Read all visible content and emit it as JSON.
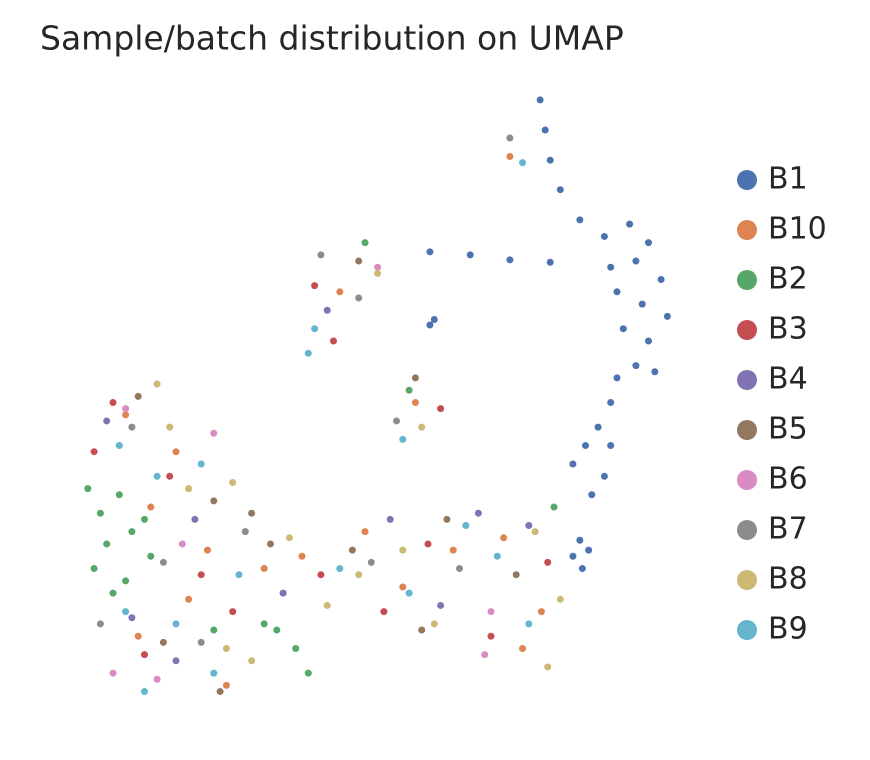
{
  "chart_data": {
    "type": "scatter",
    "title": "Sample/batch distribution on UMAP",
    "xlim": [
      0,
      10
    ],
    "ylim": [
      0,
      10
    ],
    "series": [
      {
        "name": "B1",
        "color": "#4c72b0",
        "x": [
          7.78,
          7.86,
          7.94,
          8.1,
          8.41,
          6.03,
          6.67,
          7.3,
          7.94,
          8.8,
          9.2,
          9.5,
          8.9,
          9.3,
          9.7,
          9.0,
          9.4,
          9.8,
          9.1,
          9.5,
          9.3,
          9.0,
          9.6,
          8.9,
          8.7,
          8.5,
          8.3,
          8.9,
          8.8,
          8.6,
          8.41,
          8.55,
          8.3,
          8.45,
          6.03,
          6.1
        ],
        "values": [
          9.92,
          9.43,
          8.94,
          8.46,
          7.97,
          7.45,
          7.4,
          7.32,
          7.28,
          7.7,
          7.9,
          7.6,
          7.2,
          7.3,
          7.0,
          6.8,
          6.6,
          6.4,
          6.2,
          6.0,
          5.6,
          5.4,
          5.5,
          5.0,
          4.6,
          4.3,
          4.0,
          4.3,
          3.8,
          3.5,
          2.76,
          2.6,
          2.5,
          2.3,
          6.26,
          6.35
        ]
      },
      {
        "name": "B10",
        "color": "#dd8452",
        "x": [
          1.2,
          2.0,
          1.6,
          2.5,
          1.4,
          2.8,
          2.2,
          4.0,
          5.0,
          5.6,
          7.2,
          7.8,
          7.5,
          4.6,
          5.8,
          7.3,
          3.4,
          6.4
        ],
        "values": [
          4.8,
          4.2,
          3.3,
          2.6,
          1.2,
          0.4,
          1.8,
          2.5,
          2.9,
          2.0,
          2.8,
          1.6,
          1.0,
          6.8,
          5.0,
          9.0,
          2.3,
          2.6
        ]
      },
      {
        "name": "B2",
        "color": "#55a868",
        "x": [
          0.6,
          0.8,
          1.1,
          0.9,
          1.3,
          0.7,
          1.2,
          1.5,
          1.0,
          3.4,
          3.9,
          4.1,
          3.6,
          2.6,
          5.0,
          5.7,
          8.0,
          1.6
        ],
        "values": [
          3.6,
          3.2,
          3.5,
          2.7,
          2.9,
          2.3,
          2.1,
          3.1,
          1.9,
          1.4,
          1.0,
          0.6,
          1.3,
          1.3,
          7.6,
          5.2,
          3.3,
          2.5
        ]
      },
      {
        "name": "B3",
        "color": "#c44e52",
        "x": [
          1.0,
          1.9,
          2.4,
          1.5,
          4.3,
          6.0,
          7.0,
          7.9,
          4.5,
          4.2,
          6.2,
          0.7,
          2.9,
          5.3
        ],
        "values": [
          5.0,
          3.8,
          2.2,
          0.9,
          2.2,
          2.7,
          1.2,
          2.4,
          6.0,
          6.9,
          4.9,
          4.2,
          1.6,
          1.6
        ]
      },
      {
        "name": "B4",
        "color": "#8172b3",
        "x": [
          0.9,
          1.3,
          2.3,
          5.4,
          6.8,
          7.6,
          4.4,
          2.0,
          3.7,
          6.2
        ],
        "values": [
          4.7,
          1.5,
          3.1,
          3.1,
          3.2,
          3.0,
          6.5,
          0.8,
          1.9,
          1.7
        ]
      },
      {
        "name": "B5",
        "color": "#937860",
        "x": [
          1.4,
          2.6,
          3.2,
          1.8,
          4.8,
          6.3,
          7.4,
          4.9,
          5.8,
          2.7,
          3.5,
          5.9
        ],
        "values": [
          5.1,
          3.4,
          3.2,
          1.1,
          2.6,
          3.1,
          2.2,
          7.3,
          5.4,
          0.3,
          2.7,
          1.3
        ]
      },
      {
        "name": "B6",
        "color": "#da8bc3",
        "x": [
          1.0,
          2.6,
          1.2,
          5.2,
          7.0,
          1.7,
          2.1,
          6.9
        ],
        "values": [
          0.6,
          4.5,
          4.9,
          7.2,
          1.6,
          0.5,
          2.7,
          0.9
        ]
      },
      {
        "name": "B7",
        "color": "#8c8c8c",
        "x": [
          1.3,
          1.8,
          0.8,
          4.3,
          4.9,
          5.5,
          3.1,
          6.5,
          7.3,
          2.4,
          5.1
        ],
        "values": [
          4.6,
          2.4,
          1.4,
          7.4,
          6.7,
          4.7,
          2.9,
          2.3,
          9.3,
          1.1,
          2.4
        ]
      },
      {
        "name": "B8",
        "color": "#ccb974",
        "x": [
          1.7,
          2.2,
          2.9,
          3.8,
          4.4,
          5.6,
          6.1,
          7.7,
          8.1,
          7.9,
          5.2,
          5.9,
          2.8,
          3.2,
          4.9,
          1.9
        ],
        "values": [
          5.3,
          3.6,
          3.7,
          2.8,
          1.7,
          2.6,
          1.4,
          2.9,
          1.8,
          0.7,
          7.1,
          4.6,
          1.0,
          0.8,
          2.2,
          4.6
        ]
      },
      {
        "name": "B9",
        "color": "#64b5cd",
        "x": [
          1.1,
          1.7,
          2.4,
          1.2,
          2.0,
          2.6,
          3.0,
          4.6,
          5.7,
          6.6,
          7.1,
          7.6,
          4.2,
          4.1,
          5.6,
          7.5,
          1.5
        ],
        "values": [
          4.3,
          3.8,
          4.0,
          1.6,
          1.4,
          0.6,
          2.2,
          2.3,
          1.9,
          3.0,
          2.5,
          1.4,
          6.2,
          5.8,
          4.4,
          8.9,
          0.3
        ]
      }
    ]
  }
}
